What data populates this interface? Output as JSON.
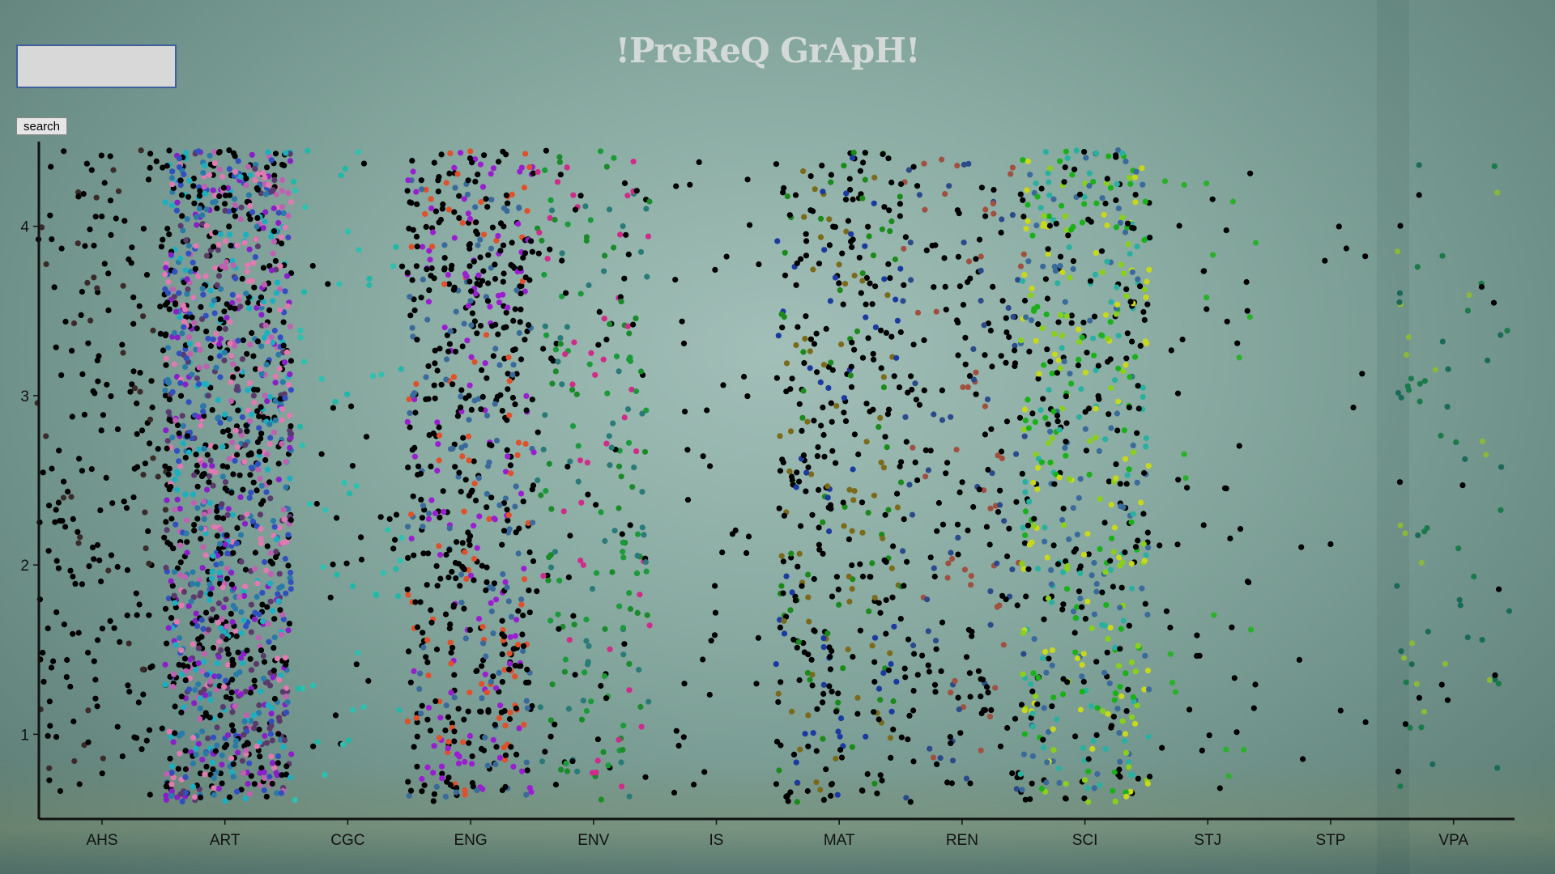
{
  "header": {
    "title": "!PreReQ GrApH!"
  },
  "search": {
    "value": "",
    "button_label": "search"
  },
  "chart_data": {
    "type": "scatter",
    "title": "!PreReQ GrApH!",
    "xlabel": "",
    "ylabel": "",
    "categories": [
      "AHS",
      "ART",
      "CGC",
      "ENG",
      "ENV",
      "IS",
      "MAT",
      "REN",
      "SCI",
      "STJ",
      "STP",
      "VPA"
    ],
    "y_ticks": [
      1,
      2,
      3,
      4
    ],
    "ylim": [
      0.5,
      4.5
    ],
    "grid": false,
    "legend": "none",
    "series": [
      {
        "category": "AHS",
        "count": 230,
        "colors": [
          "#000000",
          "#000000",
          "#000000",
          "#3a2a2a"
        ]
      },
      {
        "category": "ART",
        "count": 1400,
        "colors": [
          "#000000",
          "#000000",
          "#000000",
          "#8a1ec8",
          "#c060b0",
          "#2a7aa8",
          "#e07ab0",
          "#1ab0c0",
          "#5a3a6a",
          "#3050c0"
        ]
      },
      {
        "category": "CGC",
        "count": 80,
        "colors": [
          "#2ec0b0",
          "#20b8a8",
          "#000000"
        ]
      },
      {
        "category": "ENG",
        "count": 720,
        "colors": [
          "#000000",
          "#000000",
          "#000000",
          "#9a1ed0",
          "#e0502a",
          "#3a6a9a"
        ]
      },
      {
        "category": "ENV",
        "count": 260,
        "colors": [
          "#1a9a3a",
          "#d02a8a",
          "#2a7a7a",
          "#000000",
          "#1a8a2a"
        ]
      },
      {
        "category": "IS",
        "count": 40,
        "colors": [
          "#000000"
        ]
      },
      {
        "category": "MAT",
        "count": 430,
        "colors": [
          "#000000",
          "#000000",
          "#000000",
          "#1a8a1a",
          "#1a3aa0",
          "#7a6a1a"
        ]
      },
      {
        "category": "REN",
        "count": 260,
        "colors": [
          "#000000",
          "#000000",
          "#000000",
          "#2a4a8a",
          "#a05040"
        ]
      },
      {
        "category": "SCI",
        "count": 620,
        "colors": [
          "#000000",
          "#000000",
          "#1ab01a",
          "#8ad01a",
          "#3a6a9a",
          "#2ab0a0",
          "#c8d81a"
        ]
      },
      {
        "category": "STJ",
        "count": 60,
        "colors": [
          "#000000",
          "#000000",
          "#2ab02a"
        ]
      },
      {
        "category": "STP",
        "count": 12,
        "colors": [
          "#000000"
        ]
      },
      {
        "category": "VPA",
        "count": 80,
        "colors": [
          "#000000",
          "#1a6a5a",
          "#8ab83a",
          "#1a7a4a"
        ]
      }
    ]
  },
  "colors": {
    "background": "#8aaca3",
    "title": "#d2d9d6",
    "axis": "#111111"
  }
}
